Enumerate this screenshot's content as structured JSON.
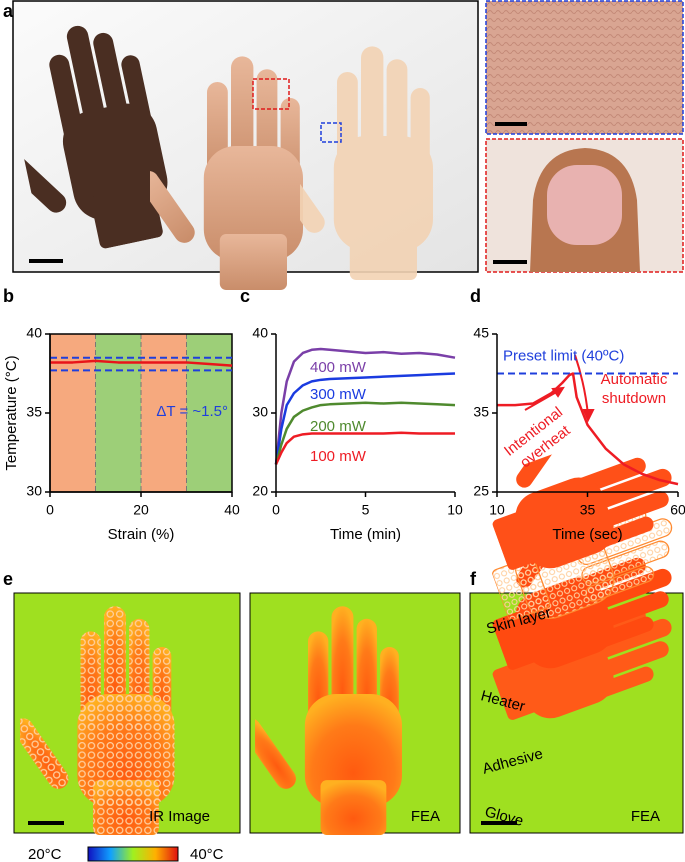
{
  "panel_labels": [
    "a",
    "b",
    "c",
    "d",
    "e",
    "f"
  ],
  "chart_data": [
    {
      "type": "line",
      "xlabel": "Strain (%)",
      "ylabel": "Temperature (°C)",
      "xlim": [
        0,
        40
      ],
      "ylim": [
        30,
        40
      ],
      "xticks": [
        0,
        20,
        40
      ],
      "yticks": [
        30,
        35,
        40
      ],
      "bands": [
        {
          "x0": 0,
          "x1": 10,
          "color": "#f6a97e"
        },
        {
          "x0": 10,
          "x1": 20,
          "color": "#9dcf78"
        },
        {
          "x0": 20,
          "x1": 30,
          "color": "#f6a97e"
        },
        {
          "x0": 30,
          "x1": 40,
          "color": "#9dcf78"
        }
      ],
      "x": [
        0,
        5,
        10,
        15,
        20,
        25,
        30,
        35,
        40
      ],
      "series": [
        {
          "color": "#e8141a",
          "values": [
            38.2,
            38.2,
            38.3,
            38.2,
            38.2,
            38.2,
            38.2,
            38.1,
            38.0
          ]
        }
      ],
      "hlines": [
        {
          "value": 38.5,
          "color": "#1f3fdc"
        },
        {
          "value": 37.7,
          "color": "#1f3fdc"
        }
      ],
      "annotation": "ΔT = ~1.5°"
    },
    {
      "type": "line",
      "xlabel": "Time (min)",
      "xlim": [
        0,
        10
      ],
      "ylim": [
        20,
        40
      ],
      "xticks": [
        0,
        5,
        10
      ],
      "yticks": [
        20,
        30,
        40
      ],
      "x": [
        0,
        0.3,
        0.6,
        1,
        1.5,
        2,
        2.5,
        3,
        4,
        5,
        6,
        7,
        8,
        9,
        10
      ],
      "series": [
        {
          "name": "400 mW",
          "color": "#7a3fa8",
          "values": [
            23.5,
            30,
            34,
            36.5,
            37.6,
            38,
            38.1,
            38,
            37.8,
            37.6,
            37.7,
            37.5,
            37.6,
            37.4,
            37.0
          ]
        },
        {
          "name": "300 mW",
          "color": "#1a3be0",
          "values": [
            23.5,
            28,
            31,
            32.5,
            33.5,
            34,
            34.2,
            34.3,
            34.4,
            34.5,
            34.6,
            34.7,
            34.8,
            34.9,
            35
          ]
        },
        {
          "name": "200 mW",
          "color": "#4f8a2e",
          "values": [
            23.5,
            26,
            28,
            29.5,
            30.3,
            30.7,
            31,
            31.1,
            31.2,
            31.3,
            31.2,
            31.3,
            31.2,
            31.1,
            31
          ]
        },
        {
          "name": "100 mW",
          "color": "#ee1c24",
          "values": [
            23.5,
            25,
            26.2,
            27,
            27.3,
            27.4,
            27.4,
            27.4,
            27.4,
            27.4,
            27.4,
            27.5,
            27.4,
            27.4,
            27.4
          ]
        }
      ]
    },
    {
      "type": "line",
      "xlabel": "Time (sec)",
      "xlim": [
        10,
        60
      ],
      "ylim": [
        25,
        45
      ],
      "xticks": [
        10,
        35,
        60
      ],
      "yticks": [
        25,
        35,
        45
      ],
      "x": [
        10,
        15,
        20,
        25,
        28,
        30,
        31,
        32,
        35,
        40,
        45,
        50,
        55,
        58,
        60
      ],
      "series": [
        {
          "color": "#ee1c24",
          "values": [
            36,
            36,
            36.2,
            37.5,
            38.8,
            39.8,
            40,
            37,
            33.5,
            30.5,
            28.5,
            27.3,
            26.5,
            26.2,
            26
          ]
        }
      ],
      "hlines": [
        {
          "value": 40,
          "color": "#1f3fdc",
          "label": "Preset limit (40ºC)"
        }
      ],
      "annotations": [
        [
          "Intentional",
          "overheat"
        ],
        [
          "Automatic",
          "shutdown"
        ]
      ]
    }
  ],
  "panel_e": {
    "labels": [
      "IR Image",
      "FEA"
    ],
    "colorbar": {
      "min_label": "20°C",
      "max_label": "40°C"
    }
  },
  "panel_f": {
    "layers": [
      "Skin layer",
      "Heater",
      "Adhesive",
      "Glove"
    ],
    "label": "FEA"
  }
}
